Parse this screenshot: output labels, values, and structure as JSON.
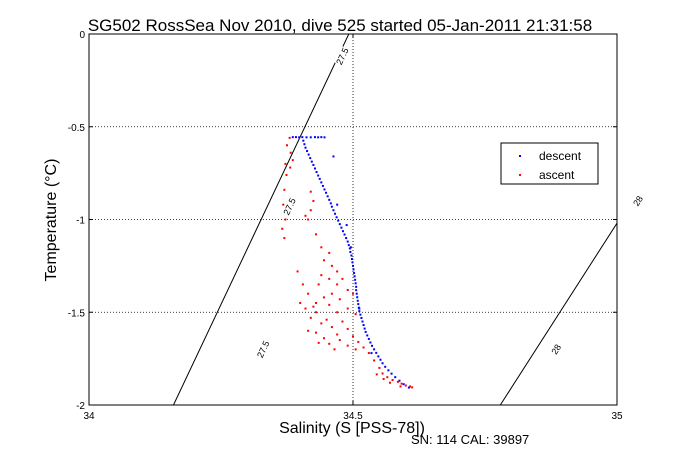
{
  "chart_data": {
    "type": "scatter",
    "title": "SG502 RossSea Nov 2010, dive 525 started 05-Jan-2011 21:31:58",
    "xlabel": "Salinity (S [PSS-78])",
    "ylabel": "Temperature (°C)",
    "xlim": [
      34,
      35
    ],
    "ylim": [
      -2,
      0
    ],
    "x_ticks": [
      {
        "value": 34,
        "label": "34"
      },
      {
        "value": 34.5,
        "label": "34.5"
      },
      {
        "value": 35,
        "label": "35"
      }
    ],
    "y_ticks": [
      {
        "value": 0,
        "label": "0"
      },
      {
        "value": -0.5,
        "label": "-0.5"
      },
      {
        "value": -1,
        "label": "-1"
      },
      {
        "value": -1.5,
        "label": "-1.5"
      },
      {
        "value": -2,
        "label": "-2"
      }
    ],
    "grid": true,
    "legend_placement": "right",
    "footer": "SN: 114  CAL: 39897",
    "isopycnals": [
      {
        "label": "27.5",
        "points": [
          [
            34.492,
            0
          ],
          [
            34.16,
            -2
          ]
        ],
        "label_positions": [
          [
            34.48,
            -0.12
          ],
          [
            34.38,
            -0.93
          ],
          [
            34.33,
            -1.7
          ]
        ]
      },
      {
        "label": "28",
        "points": [
          [
            35.23,
            0
          ],
          [
            34.779,
            -2
          ]
        ],
        "label_positions": [
          [
            35.195,
            -0.12
          ],
          [
            35.04,
            -0.9
          ],
          [
            34.885,
            -1.7
          ]
        ]
      }
    ],
    "series": [
      {
        "name": "descent",
        "color": "#0000ff",
        "points": [
          [
            34.386,
            -0.556
          ],
          [
            34.392,
            -0.556
          ],
          [
            34.398,
            -0.557
          ],
          [
            34.404,
            -0.556
          ],
          [
            34.412,
            -0.557
          ],
          [
            34.42,
            -0.557
          ],
          [
            34.428,
            -0.556
          ],
          [
            34.434,
            -0.557
          ],
          [
            34.44,
            -0.556
          ],
          [
            34.446,
            -0.557
          ],
          [
            34.406,
            -0.575
          ],
          [
            34.408,
            -0.594
          ],
          [
            34.41,
            -0.613
          ],
          [
            34.413,
            -0.631
          ],
          [
            34.416,
            -0.65
          ],
          [
            34.419,
            -0.669
          ],
          [
            34.422,
            -0.688
          ],
          [
            34.425,
            -0.706
          ],
          [
            34.428,
            -0.725
          ],
          [
            34.431,
            -0.744
          ],
          [
            34.434,
            -0.763
          ],
          [
            34.437,
            -0.781
          ],
          [
            34.44,
            -0.8
          ],
          [
            34.443,
            -0.819
          ],
          [
            34.446,
            -0.838
          ],
          [
            34.449,
            -0.856
          ],
          [
            34.452,
            -0.875
          ],
          [
            34.455,
            -0.894
          ],
          [
            34.458,
            -0.913
          ],
          [
            34.46,
            -0.931
          ],
          [
            34.463,
            -0.95
          ],
          [
            34.466,
            -0.969
          ],
          [
            34.469,
            -0.988
          ],
          [
            34.472,
            -1.006
          ],
          [
            34.475,
            -1.025
          ],
          [
            34.478,
            -1.044
          ],
          [
            34.481,
            -1.063
          ],
          [
            34.484,
            -1.081
          ],
          [
            34.487,
            -1.1
          ],
          [
            34.49,
            -1.119
          ],
          [
            34.492,
            -1.138
          ],
          [
            34.494,
            -1.156
          ],
          [
            34.495,
            -1.175
          ],
          [
            34.497,
            -1.194
          ],
          [
            34.498,
            -1.213
          ],
          [
            34.499,
            -1.231
          ],
          [
            34.5,
            -1.25
          ],
          [
            34.501,
            -1.269
          ],
          [
            34.502,
            -1.288
          ],
          [
            34.503,
            -1.306
          ],
          [
            34.504,
            -1.325
          ],
          [
            34.505,
            -1.344
          ],
          [
            34.506,
            -1.363
          ],
          [
            34.506,
            -1.381
          ],
          [
            34.507,
            -1.4
          ],
          [
            34.508,
            -1.419
          ],
          [
            34.509,
            -1.438
          ],
          [
            34.51,
            -1.456
          ],
          [
            34.511,
            -1.475
          ],
          [
            34.512,
            -1.494
          ],
          [
            34.514,
            -1.513
          ],
          [
            34.516,
            -1.531
          ],
          [
            34.518,
            -1.55
          ],
          [
            34.52,
            -1.569
          ],
          [
            34.522,
            -1.588
          ],
          [
            34.524,
            -1.606
          ],
          [
            34.527,
            -1.625
          ],
          [
            34.53,
            -1.644
          ],
          [
            34.533,
            -1.663
          ],
          [
            34.536,
            -1.681
          ],
          [
            34.54,
            -1.7
          ],
          [
            34.544,
            -1.719
          ],
          [
            34.548,
            -1.738
          ],
          [
            34.552,
            -1.756
          ],
          [
            34.556,
            -1.775
          ],
          [
            34.561,
            -1.794
          ],
          [
            34.567,
            -1.813
          ],
          [
            34.573,
            -1.831
          ],
          [
            34.58,
            -1.85
          ],
          [
            34.588,
            -1.869
          ],
          [
            34.596,
            -1.888
          ],
          [
            34.606,
            -1.906
          ],
          [
            34.463,
            -0.66
          ],
          [
            34.47,
            -0.92
          ],
          [
            34.488,
            -1.03
          ],
          [
            34.496,
            -1.15
          ],
          [
            34.512,
            -1.48
          ],
          [
            34.535,
            -1.72
          ]
        ]
      },
      {
        "name": "ascent",
        "color": "#ff0000",
        "points": [
          [
            34.38,
            -0.56
          ],
          [
            34.375,
            -0.6
          ],
          [
            34.382,
            -0.64
          ],
          [
            34.386,
            -0.68
          ],
          [
            34.381,
            -0.72
          ],
          [
            34.372,
            -0.7
          ],
          [
            34.374,
            -0.76
          ],
          [
            34.37,
            -0.84
          ],
          [
            34.368,
            -0.92
          ],
          [
            34.372,
            -1.0
          ],
          [
            34.366,
            -1.05
          ],
          [
            34.37,
            -1.1
          ],
          [
            34.42,
            -0.85
          ],
          [
            34.425,
            -0.9
          ],
          [
            34.42,
            -0.95
          ],
          [
            34.415,
            -1.0
          ],
          [
            34.41,
            -0.98
          ],
          [
            34.43,
            -1.08
          ],
          [
            34.44,
            -1.15
          ],
          [
            34.455,
            -1.18
          ],
          [
            34.445,
            -1.22
          ],
          [
            34.46,
            -1.25
          ],
          [
            34.47,
            -1.28
          ],
          [
            34.44,
            -1.3
          ],
          [
            34.455,
            -1.32
          ],
          [
            34.48,
            -1.32
          ],
          [
            34.47,
            -1.35
          ],
          [
            34.49,
            -1.38
          ],
          [
            34.46,
            -1.4
          ],
          [
            34.445,
            -1.42
          ],
          [
            34.475,
            -1.43
          ],
          [
            34.5,
            -1.4
          ],
          [
            34.43,
            -1.45
          ],
          [
            34.455,
            -1.46
          ],
          [
            34.49,
            -1.48
          ],
          [
            34.41,
            -1.48
          ],
          [
            34.43,
            -1.5
          ],
          [
            34.47,
            -1.5
          ],
          [
            34.505,
            -1.51
          ],
          [
            34.42,
            -1.53
          ],
          [
            34.45,
            -1.54
          ],
          [
            34.48,
            -1.55
          ],
          [
            34.44,
            -1.56
          ],
          [
            34.46,
            -1.58
          ],
          [
            34.49,
            -1.59
          ],
          [
            34.415,
            -1.6
          ],
          [
            34.43,
            -1.61
          ],
          [
            34.47,
            -1.62
          ],
          [
            34.5,
            -1.63
          ],
          [
            34.445,
            -1.64
          ],
          [
            34.475,
            -1.65
          ],
          [
            34.51,
            -1.66
          ],
          [
            34.435,
            -1.665
          ],
          [
            34.455,
            -1.67
          ],
          [
            34.49,
            -1.68
          ],
          [
            34.52,
            -1.69
          ],
          [
            34.505,
            -1.7
          ],
          [
            34.425,
            -1.47
          ],
          [
            34.395,
            -1.28
          ],
          [
            34.405,
            -1.35
          ],
          [
            34.4,
            -1.45
          ],
          [
            34.415,
            -1.4
          ],
          [
            34.435,
            -1.35
          ],
          [
            34.465,
            -1.7
          ],
          [
            34.53,
            -1.72
          ],
          [
            34.54,
            -1.76
          ],
          [
            34.55,
            -1.8
          ],
          [
            34.556,
            -1.83
          ],
          [
            34.565,
            -1.85
          ],
          [
            34.575,
            -1.865
          ],
          [
            34.585,
            -1.875
          ],
          [
            34.592,
            -1.885
          ],
          [
            34.6,
            -1.895
          ],
          [
            34.608,
            -1.9
          ],
          [
            34.612,
            -1.905
          ],
          [
            34.545,
            -1.835
          ],
          [
            34.558,
            -1.86
          ],
          [
            34.57,
            -1.88
          ],
          [
            34.59,
            -1.9
          ]
        ]
      }
    ]
  }
}
